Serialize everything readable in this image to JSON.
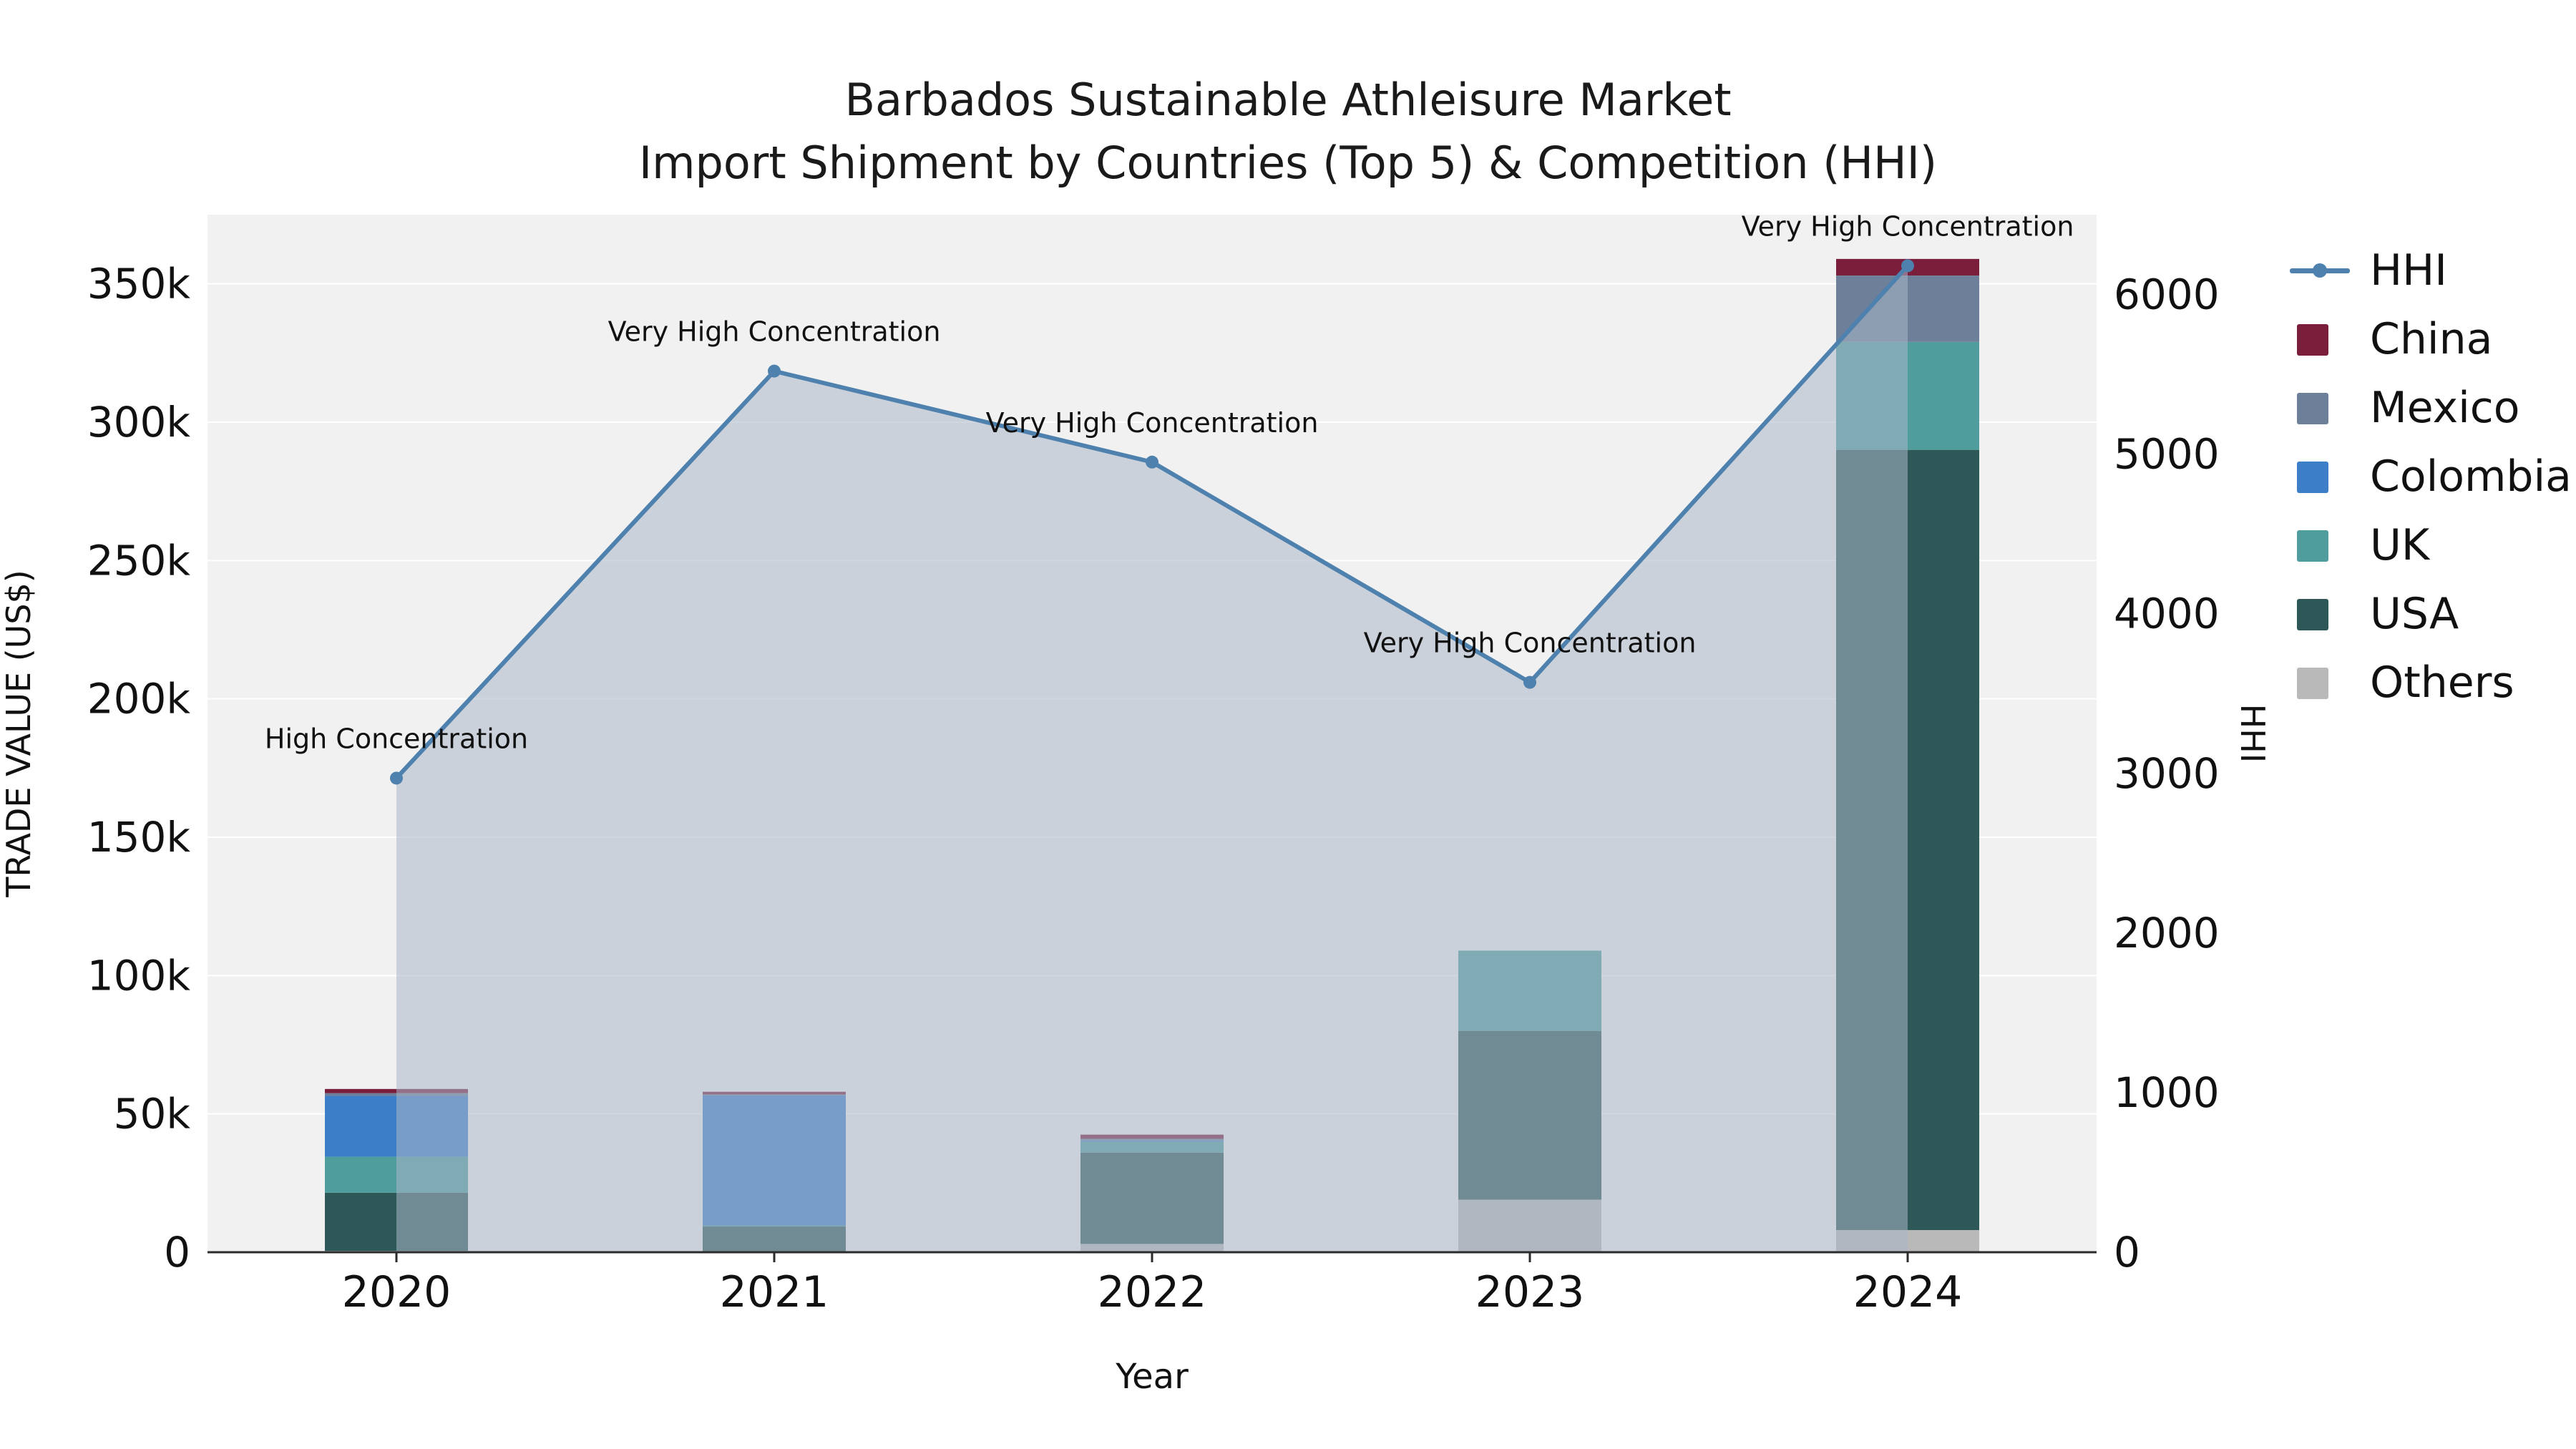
{
  "chart_data": {
    "type": "bar+line",
    "title_line1": "Barbados Sustainable Athleisure Market",
    "title_line2": "Import Shipment by Countries (Top 5) & Competition (HHI)",
    "xlabel": "Year",
    "ylabel_left": "TRADE VALUE (US$)",
    "ylabel_right": "HHI",
    "categories": [
      "2020",
      "2021",
      "2022",
      "2023",
      "2024"
    ],
    "series": [
      {
        "name": "Others",
        "color": "#b9b9b9",
        "values": [
          500,
          300,
          3000,
          19000,
          8000
        ]
      },
      {
        "name": "USA",
        "color": "#2e5757",
        "values": [
          21000,
          9000,
          33000,
          61000,
          282000
        ]
      },
      {
        "name": "UK",
        "color": "#4f9d9d",
        "values": [
          13000,
          400,
          4000,
          29000,
          39000
        ]
      },
      {
        "name": "Colombia",
        "color": "#3d7ec9",
        "values": [
          22000,
          47000,
          400,
          0,
          0
        ]
      },
      {
        "name": "Mexico",
        "color": "#6e8099",
        "values": [
          1000,
          300,
          600,
          0,
          24000
        ]
      },
      {
        "name": "China",
        "color": "#7a1e3c",
        "values": [
          1500,
          1000,
          1500,
          0,
          6000
        ]
      }
    ],
    "hhi": {
      "name": "HHI",
      "color": "#4e81ad",
      "area_color": "rgba(170,183,198,0.55)",
      "values": [
        2970,
        5520,
        4950,
        3570,
        6180
      ]
    },
    "annotations": [
      "High Concentration",
      "Very High Concentration",
      "Very High Concentration",
      "Very High Concentration",
      "Very High Concentration"
    ],
    "axis_left": {
      "min": 0,
      "max": 375000,
      "ticks": [
        {
          "v": 0,
          "label": "0"
        },
        {
          "v": 50000,
          "label": "50k"
        },
        {
          "v": 100000,
          "label": "100k"
        },
        {
          "v": 150000,
          "label": "150k"
        },
        {
          "v": 200000,
          "label": "200k"
        },
        {
          "v": 250000,
          "label": "250k"
        },
        {
          "v": 300000,
          "label": "300k"
        },
        {
          "v": 350000,
          "label": "350k"
        }
      ]
    },
    "axis_right": {
      "min": 0,
      "max": 6500,
      "ticks": [
        {
          "v": 0,
          "label": "0"
        },
        {
          "v": 1000,
          "label": "1000"
        },
        {
          "v": 2000,
          "label": "2000"
        },
        {
          "v": 3000,
          "label": "3000"
        },
        {
          "v": 4000,
          "label": "4000"
        },
        {
          "v": 5000,
          "label": "5000"
        },
        {
          "v": 6000,
          "label": "6000"
        }
      ]
    },
    "legend_order": [
      "HHI",
      "China",
      "Mexico",
      "Colombia",
      "UK",
      "USA",
      "Others"
    ],
    "plot_background": "#f1f1f2"
  }
}
